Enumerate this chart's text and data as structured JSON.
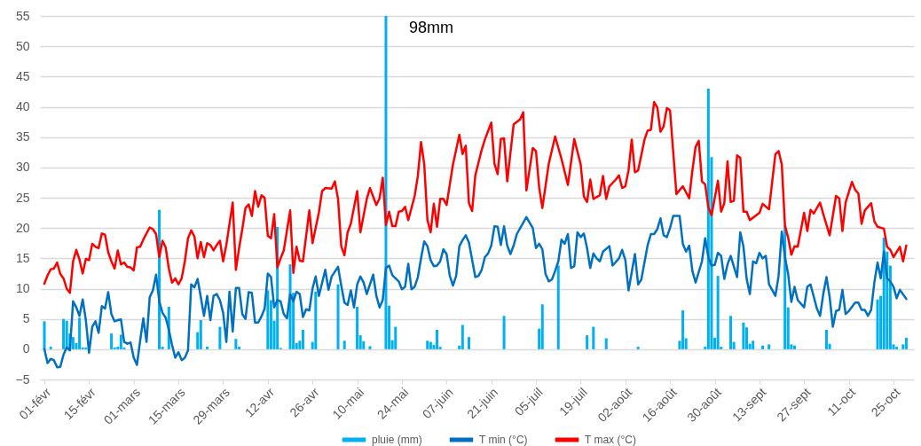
{
  "chart_data": {
    "type": "line",
    "legend": "bottom",
    "grid": "y",
    "xlim": [
      "--02-01",
      "--10-30"
    ],
    "ylim": [
      -5,
      55
    ],
    "yticks": [
      -5,
      0,
      5,
      10,
      15,
      20,
      25,
      30,
      35,
      40,
      45,
      50,
      55
    ],
    "xticks": [
      {
        "value": "--02-01",
        "label": "01-févr"
      },
      {
        "value": "--02-15",
        "label": "15-févr"
      },
      {
        "value": "--03-01",
        "label": "01-mars"
      },
      {
        "value": "--03-15",
        "label": "15-mars"
      },
      {
        "value": "--03-29",
        "label": "29-mars"
      },
      {
        "value": "--04-12",
        "label": "12-avr"
      },
      {
        "value": "--04-26",
        "label": "26-avr"
      },
      {
        "value": "--05-10",
        "label": "10-mai"
      },
      {
        "value": "--05-24",
        "label": "24-mai"
      },
      {
        "value": "--06-07",
        "label": "07-juin"
      },
      {
        "value": "--06-21",
        "label": "21-juin"
      },
      {
        "value": "--07-05",
        "label": "05-juil"
      },
      {
        "value": "--07-19",
        "label": "19-juil"
      },
      {
        "value": "--08-02",
        "label": "02-août"
      },
      {
        "value": "--08-16",
        "label": "16-août"
      },
      {
        "value": "--08-30",
        "label": "30-août"
      },
      {
        "value": "--09-13",
        "label": "13-sept"
      },
      {
        "value": "--09-27",
        "label": "27-sept"
      },
      {
        "value": "--10-11",
        "label": "11-oct"
      },
      {
        "value": "--10-25",
        "label": "25-oct"
      }
    ],
    "annotations": [
      {
        "text": "98mm",
        "x": "--05-19",
        "y": 55
      }
    ],
    "series": [
      {
        "name": "pluie (mm)",
        "type": "bar",
        "color": "#00b0f0",
        "x": [
          "--02-01",
          "--02-03",
          "--02-07",
          "--02-08",
          "--02-09",
          "--02-10",
          "--02-11",
          "--02-12",
          "--02-13",
          "--02-14",
          "--02-22",
          "--02-23",
          "--02-24",
          "--02-25",
          "--02-26",
          "--03-09",
          "--03-10",
          "--03-12",
          "--03-21",
          "--03-22",
          "--03-24",
          "--03-28",
          "--04-02",
          "--04-03",
          "--04-12",
          "--04-13",
          "--04-14",
          "--04-15",
          "--04-16",
          "--04-19",
          "--04-20",
          "--04-21",
          "--04-22",
          "--04-23",
          "--04-26",
          "--04-27",
          "--05-04",
          "--05-06",
          "--05-10",
          "--05-11",
          "--05-12",
          "--05-14",
          "--05-19",
          "--05-20",
          "--05-21",
          "--05-22",
          "--06-01",
          "--06-02",
          "--06-03",
          "--06-04",
          "--06-05",
          "--06-11",
          "--06-12",
          "--06-14",
          "--06-25",
          "--07-06",
          "--07-07",
          "--07-12",
          "--07-21",
          "--07-23",
          "--07-27",
          "--08-06",
          "--08-19",
          "--08-20",
          "--08-21",
          "--08-27",
          "--08-28",
          "--08-29",
          "--08-30",
          "--08-31",
          "--09-01",
          "--09-04",
          "--09-05",
          "--09-08",
          "--09-09",
          "--09-10",
          "--09-11",
          "--09-14",
          "--09-16",
          "--09-21",
          "--09-22",
          "--09-23",
          "--09-24",
          "--10-04",
          "--10-05",
          "--10-20",
          "--10-21",
          "--10-22",
          "--10-23",
          "--10-24",
          "--10-25",
          "--10-26",
          "--10-28",
          "--10-29"
        ],
        "values": [
          4.6,
          0.4,
          5.0,
          4.7,
          2.6,
          2.0,
          1.0,
          5.2,
          0.3,
          0.3,
          2.6,
          0.3,
          0.4,
          2.4,
          0.3,
          23.0,
          0.4,
          7.0,
          2.8,
          4.8,
          0.4,
          3.7,
          1.7,
          0.4,
          9.7,
          8.1,
          4.7,
          20.2,
          0.2,
          14.0,
          9.3,
          1.0,
          1.4,
          3.2,
          1.2,
          9.5,
          10.7,
          1.4,
          7.0,
          2.3,
          1.3,
          0.5,
          55,
          7.2,
          1.5,
          3.7,
          1.4,
          1.2,
          0.7,
          3.2,
          0.4,
          0.6,
          4.0,
          2.0,
          5.5,
          3.4,
          7.4,
          13.8,
          2.3,
          3.7,
          1.8,
          0.4,
          1.4,
          6.4,
          1.8,
          0.4,
          43.0,
          31.7,
          1.9,
          12.1,
          0.4,
          5.5,
          1.2,
          4.4,
          3.6,
          0.9,
          1.4,
          0.6,
          0.8,
          20.4,
          6.9,
          0.8,
          0.6,
          3.2,
          0.9,
          8.2,
          8.8,
          18.4,
          16.1,
          13.8,
          0.8,
          0.4,
          0.8,
          1.9
        ]
      },
      {
        "name": "T min (°C)",
        "color": "#0070c0",
        "x": [
          "--02-01",
          "--02-02",
          "--02-03",
          "--02-04",
          "--02-05",
          "--02-06",
          "--02-07",
          "--02-08",
          "--02-09",
          "--02-10",
          "--02-11",
          "--02-12",
          "--02-13",
          "--02-14",
          "--02-15",
          "--02-16",
          "--02-17",
          "--02-18",
          "--02-19",
          "--02-20",
          "--02-21",
          "--02-22",
          "--02-23",
          "--02-24",
          "--02-25",
          "--02-26",
          "--02-27",
          "--02-28",
          "--03-01",
          "--03-02",
          "--03-03",
          "--03-04",
          "--03-05",
          "--03-06",
          "--03-07",
          "--03-08",
          "--03-09",
          "--03-10",
          "--03-11",
          "--03-12",
          "--03-13",
          "--03-14",
          "--03-15",
          "--03-16",
          "--03-17",
          "--03-18",
          "--03-19",
          "--03-20",
          "--03-21",
          "--03-22",
          "--03-23",
          "--03-24",
          "--03-25",
          "--03-26",
          "--03-27",
          "--03-28",
          "--03-29",
          "--03-30",
          "--03-31",
          "--04-01",
          "--04-02",
          "--04-03",
          "--04-04",
          "--04-05",
          "--04-06",
          "--04-07",
          "--04-08",
          "--04-09",
          "--04-10",
          "--04-11",
          "--04-12",
          "--04-13",
          "--04-14",
          "--04-15",
          "--04-16",
          "--04-17",
          "--04-18",
          "--04-19",
          "--04-20",
          "--04-21",
          "--04-22",
          "--04-23",
          "--04-24",
          "--04-25",
          "--04-26",
          "--04-27",
          "--04-28",
          "--04-30",
          "--05-01",
          "--05-02",
          "--05-04",
          "--05-05",
          "--05-06",
          "--05-07",
          "--05-08",
          "--05-09",
          "--05-10",
          "--05-11",
          "--05-12",
          "--05-13",
          "--05-15",
          "--05-16",
          "--05-17",
          "--05-18",
          "--05-19",
          "--05-20",
          "--05-21",
          "--05-23",
          "--05-24",
          "--05-25",
          "--05-26",
          "--05-27",
          "--05-28",
          "--05-29",
          "--05-30",
          "--05-31",
          "--06-01",
          "--06-02",
          "--06-03",
          "--06-04",
          "--06-05",
          "--06-06",
          "--06-07",
          "--06-08",
          "--06-09",
          "--06-10",
          "--06-11",
          "--06-12",
          "--06-13",
          "--06-14",
          "--06-16",
          "--06-17",
          "--06-18",
          "--06-19",
          "--06-20",
          "--06-21",
          "--06-22",
          "--06-23",
          "--06-24",
          "--06-25",
          "--06-26",
          "--06-27",
          "--06-28",
          "--06-29",
          "--07-02",
          "--07-04",
          "--07-05",
          "--07-06",
          "--07-07",
          "--07-08",
          "--07-09",
          "--07-10",
          "--07-11",
          "--07-12",
          "--07-13",
          "--07-14",
          "--07-15",
          "--07-16",
          "--07-17",
          "--07-18",
          "--07-19",
          "--07-20",
          "--07-21",
          "--07-22",
          "--07-23",
          "--07-24",
          "--07-25",
          "--07-26",
          "--07-28",
          "--07-29",
          "--07-31",
          "--08-01",
          "--08-02",
          "--08-03",
          "--08-05",
          "--08-06",
          "--08-07",
          "--08-09",
          "--08-10",
          "--08-11",
          "--08-12",
          "--08-13",
          "--08-14",
          "--08-15",
          "--08-16",
          "--08-17",
          "--08-19",
          "--08-20",
          "--08-21",
          "--08-22",
          "--08-23",
          "--08-24",
          "--08-26",
          "--08-27",
          "--08-28",
          "--08-29",
          "--08-30",
          "--08-31",
          "--09-01",
          "--09-02",
          "--09-03",
          "--09-04",
          "--09-06",
          "--09-07",
          "--09-08",
          "--09-09",
          "--09-10",
          "--09-11",
          "--09-12",
          "--09-13",
          "--09-14",
          "--09-15",
          "--09-16",
          "--09-18",
          "--09-19",
          "--09-20",
          "--09-21",
          "--09-22",
          "--09-23",
          "--09-24",
          "--09-25",
          "--09-27",
          "--09-28",
          "--09-29",
          "--10-01",
          "--10-02",
          "--10-03",
          "--10-04",
          "--10-05",
          "--10-06",
          "--10-07",
          "--10-08",
          "--10-09",
          "--10-10",
          "--10-11",
          "--10-13",
          "--10-14",
          "--10-15",
          "--10-16",
          "--10-17",
          "--10-18",
          "--10-19",
          "--10-20",
          "--10-21",
          "--10-22",
          "--10-23",
          "--10-24",
          "--10-25",
          "--10-26",
          "--10-27",
          "--10-29"
        ],
        "values": [
          0.0,
          -2.3,
          -1.6,
          -1.8,
          -3.0,
          -2.9,
          -0.9,
          0.3,
          -0.2,
          7.9,
          6.9,
          5.5,
          8.2,
          4.8,
          -0.6,
          3.7,
          4.6,
          2.7,
          7.1,
          6.7,
          9.4,
          5.8,
          4.6,
          4.8,
          4.9,
          1.2,
          0.9,
          1.1,
          -1.4,
          -2.6,
          1.4,
          5.1,
          1.2,
          8.6,
          9.7,
          12.3,
          7.9,
          6.0,
          5.2,
          3.2,
          0.7,
          -1.4,
          -0.5,
          -1.8,
          -1.4,
          -0.2,
          10.7,
          10.2,
          11.6,
          8.6,
          5.5,
          8.8,
          4.8,
          8.8,
          9.1,
          8.1,
          6.0,
          1.2,
          9.5,
          2.9,
          10.1,
          10.1,
          5.8,
          5.0,
          9.4,
          9.3,
          4.4,
          4.4,
          5.4,
          6.7,
          12.5,
          11.9,
          6.9,
          8.1,
          7.9,
          5.8,
          5.1,
          9.1,
          7.9,
          9.5,
          9.1,
          5.3,
          6.6,
          6.4,
          10.0,
          12.0,
          8.8,
          13.1,
          9.8,
          12.0,
          13.6,
          10.5,
          7.7,
          7.3,
          9.7,
          6.9,
          10.7,
          12.0,
          11.0,
          9.1,
          12.3,
          8.8,
          6.9,
          8.1,
          13.4,
          13.8,
          12.2,
          11.2,
          9.9,
          10.3,
          14.1,
          9.9,
          10.3,
          11.9,
          15.0,
          17.8,
          17.0,
          14.7,
          13.7,
          13.8,
          14.5,
          16.5,
          15.7,
          12.1,
          10.5,
          12.1,
          17.0,
          18.0,
          18.8,
          17.6,
          11.9,
          12.1,
          13.1,
          15.2,
          15.8,
          17.1,
          20.3,
          20.2,
          17.2,
          20.3,
          17.1,
          15.7,
          17.1,
          19.0,
          21.8,
          20.0,
          16.7,
          17.4,
          16.5,
          12.4,
          11.2,
          11.5,
          12.9,
          14.5,
          18.1,
          17.4,
          19.0,
          13.4,
          13.7,
          19.3,
          18.5,
          19.1,
          16.7,
          13.4,
          15.8,
          15.0,
          14.5,
          16.1,
          17.0,
          13.8,
          15.0,
          16.4,
          14.7,
          9.7,
          15.7,
          10.7,
          11.5,
          17.2,
          19.0,
          19.0,
          19.8,
          21.6,
          18.8,
          18.5,
          20.0,
          22.0,
          22.0,
          17.4,
          16.1,
          17.1,
          12.9,
          11.0,
          14.5,
          18.3,
          15.2,
          13.8,
          13.9,
          15.9,
          15.4,
          11.6,
          14.0,
          15.4,
          11.9,
          19.3,
          16.9,
          11.6,
          9.1,
          14.5,
          14.2,
          15.9,
          15.0,
          15.4,
          10.7,
          8.8,
          12.1,
          19.4,
          15.2,
          12.4,
          7.8,
          10.3,
          8.1,
          6.9,
          10.3,
          10.7,
          6.7,
          5.5,
          9.1,
          11.9,
          8.6,
          3.7,
          6.3,
          6.5,
          9.8,
          5.8,
          6.3,
          7.7,
          7.7,
          6.5,
          6.5,
          5.5,
          6.5,
          11.0,
          14.3,
          11.7,
          16.1,
          11.7,
          11.2,
          10.3,
          8.4,
          9.8,
          8.3
        ]
      },
      {
        "name": "T max (°C)",
        "color": "#ff0000",
        "x": [
          "--02-01",
          "--02-02",
          "--02-03",
          "--02-04",
          "--02-05",
          "--02-06",
          "--02-07",
          "--02-08",
          "--02-09",
          "--02-10",
          "--02-11",
          "--02-12",
          "--02-13",
          "--02-14",
          "--02-15",
          "--02-16",
          "--02-17",
          "--02-18",
          "--02-19",
          "--02-20",
          "--02-21",
          "--02-22",
          "--02-23",
          "--02-24",
          "--02-25",
          "--02-26",
          "--02-27",
          "--02-28",
          "--03-01",
          "--03-02",
          "--03-03",
          "--03-04",
          "--03-06",
          "--03-07",
          "--03-08",
          "--03-09",
          "--03-10",
          "--03-11",
          "--03-12",
          "--03-13",
          "--03-14",
          "--03-15",
          "--03-16",
          "--03-17",
          "--03-18",
          "--03-19",
          "--03-20",
          "--03-21",
          "--03-22",
          "--03-23",
          "--03-24",
          "--03-25",
          "--03-26",
          "--03-27",
          "--03-28",
          "--03-29",
          "--03-30",
          "--04-01",
          "--04-02",
          "--04-03",
          "--04-04",
          "--04-05",
          "--04-06",
          "--04-07",
          "--04-08",
          "--04-09",
          "--04-10",
          "--04-11",
          "--04-12",
          "--04-13",
          "--04-14",
          "--04-15",
          "--04-16",
          "--04-17",
          "--04-19",
          "--04-20",
          "--04-21",
          "--04-22",
          "--04-23",
          "--04-25",
          "--04-26",
          "--04-28",
          "--04-29",
          "--04-30",
          "--05-02",
          "--05-03",
          "--05-04",
          "--05-05",
          "--05-06",
          "--05-07",
          "--05-08",
          "--05-10",
          "--05-11",
          "--05-13",
          "--05-14",
          "--05-16",
          "--05-17",
          "--05-18",
          "--05-19",
          "--05-20",
          "--05-21",
          "--05-22",
          "--05-23",
          "--05-24",
          "--05-25",
          "--05-26",
          "--05-28",
          "--05-29",
          "--05-30",
          "--05-31",
          "--06-01",
          "--06-02",
          "--06-03",
          "--06-04",
          "--06-05",
          "--06-06",
          "--06-07",
          "--06-09",
          "--06-11",
          "--06-12",
          "--06-13",
          "--06-14",
          "--06-15",
          "--06-16",
          "--06-18",
          "--06-19",
          "--06-21",
          "--06-22",
          "--06-23",
          "--06-24",
          "--06-25",
          "--06-26",
          "--06-28",
          "--06-30",
          "--07-01",
          "--07-02",
          "--07-04",
          "--07-05",
          "--07-06",
          "--07-07",
          "--07-09",
          "--07-11",
          "--07-13",
          "--07-15",
          "--07-17",
          "--07-19",
          "--07-20",
          "--07-21",
          "--07-22",
          "--07-23",
          "--07-25",
          "--07-26",
          "--07-27",
          "--07-28",
          "--07-30",
          "--07-31",
          "--08-01",
          "--08-02",
          "--08-03",
          "--08-04",
          "--08-05",
          "--08-06",
          "--08-08",
          "--08-09",
          "--08-10",
          "--08-11",
          "--08-12",
          "--08-13",
          "--08-14",
          "--08-15",
          "--08-16",
          "--08-17",
          "--08-18",
          "--08-20",
          "--08-22",
          "--08-23",
          "--08-24",
          "--08-25",
          "--08-26",
          "--08-27",
          "--08-28",
          "--08-29",
          "--08-31",
          "--09-01",
          "--09-02",
          "--09-03",
          "--09-04",
          "--09-05",
          "--09-06",
          "--09-07",
          "--09-08",
          "--09-09",
          "--09-10",
          "--09-12",
          "--09-13",
          "--09-14",
          "--09-16",
          "--09-18",
          "--09-19",
          "--09-20",
          "--09-21",
          "--09-22",
          "--09-23",
          "--09-24",
          "--09-25",
          "--09-27",
          "--09-28",
          "--09-29",
          "--09-30",
          "--10-02",
          "--10-03",
          "--10-05",
          "--10-07",
          "--10-08",
          "--10-09",
          "--10-10",
          "--10-12",
          "--10-13",
          "--10-14",
          "--10-15",
          "--10-16",
          "--10-18",
          "--10-19",
          "--10-20",
          "--10-22",
          "--10-23",
          "--10-24",
          "--10-25",
          "--10-27",
          "--10-28",
          "--10-29"
        ],
        "values": [
          10.8,
          12.2,
          13.2,
          13.3,
          14.3,
          12.4,
          11.7,
          10.0,
          9.3,
          14.5,
          16.4,
          14.8,
          12.5,
          14.9,
          14.7,
          17.4,
          16.9,
          16.7,
          19.1,
          18.9,
          16.0,
          14.5,
          13.3,
          16.3,
          14.0,
          14.3,
          13.6,
          13.5,
          13.0,
          16.8,
          16.9,
          18.1,
          20.1,
          19.8,
          19.0,
          15.2,
          17.9,
          16.8,
          13.3,
          11.0,
          11.7,
          10.7,
          11.7,
          14.5,
          18.3,
          19.6,
          18.6,
          15.0,
          17.7,
          15.2,
          17.5,
          17.2,
          16.3,
          17.2,
          17.9,
          14.5,
          17.2,
          24.2,
          13.1,
          16.7,
          19.8,
          23.3,
          23.9,
          22.0,
          26.1,
          23.5,
          25.4,
          25.0,
          18.7,
          18.3,
          22.3,
          13.5,
          15.0,
          16.3,
          22.9,
          12.6,
          16.9,
          14.6,
          14.5,
          22.9,
          17.5,
          22.6,
          26.1,
          26.6,
          26.5,
          27.7,
          24.8,
          17.0,
          15.5,
          19.3,
          20.7,
          26.1,
          19.3,
          24.8,
          26.6,
          23.8,
          24.9,
          28.3,
          20.5,
          22.7,
          20.3,
          20.3,
          22.7,
          22.8,
          23.5,
          21.3,
          25.3,
          28.6,
          34.2,
          30.5,
          21.3,
          19.3,
          24.0,
          20.2,
          24.8,
          24.8,
          23.8,
          30.5,
          35.4,
          32.2,
          33.6,
          24.1,
          22.8,
          28.7,
          32.9,
          34.6,
          37.4,
          30.6,
          28.9,
          34.7,
          34.8,
          27.7,
          37.1,
          37.9,
          39.1,
          26.2,
          33.2,
          32.7,
          26.7,
          23.3,
          30.6,
          35.1,
          31.4,
          27.1,
          34.7,
          30.5,
          25.2,
          24.3,
          28.0,
          24.8,
          25.4,
          28.6,
          24.8,
          26.9,
          28.0,
          28.7,
          26.6,
          26.9,
          29.5,
          34.6,
          29.2,
          29.5,
          34.6,
          36.1,
          36.2,
          40.8,
          39.9,
          35.9,
          36.8,
          39.8,
          39.4,
          32.5,
          25.6,
          26.9,
          24.9,
          29.5,
          33.4,
          34.4,
          27.7,
          27.2,
          23.4,
          22.1,
          27.8,
          22.7,
          24.1,
          31.0,
          24.3,
          24.5,
          32.0,
          31.6,
          22.7,
          22.7,
          21.3,
          22.1,
          22.5,
          24.0,
          23.1,
          32.2,
          32.7,
          30.5,
          20.4,
          18.4,
          15.6,
          17.0,
          16.9,
          22.5,
          19.5,
          23.0,
          22.4,
          24.2,
          22.3,
          18.8,
          25.3,
          24.9,
          19.5,
          24.2,
          27.6,
          26.3,
          25.7,
          20.7,
          22.9,
          24.1,
          21.1,
          20.2,
          19.9,
          16.9,
          16.4,
          15.2,
          16.9,
          14.5,
          17.1
        ]
      }
    ]
  }
}
